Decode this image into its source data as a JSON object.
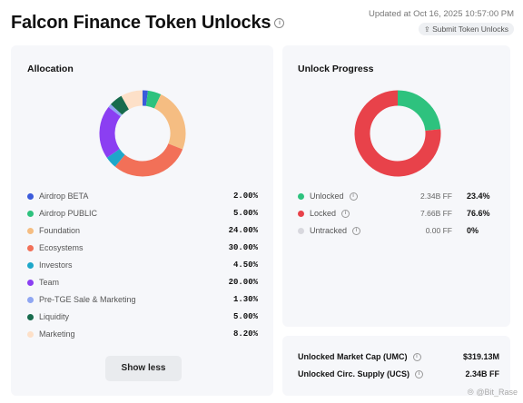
{
  "header": {
    "title": "Falcon Finance Token Unlocks",
    "updated": "Updated at Oct 16, 2025 10:57:00 PM",
    "submit_label": "Submit Token Unlocks"
  },
  "allocation": {
    "title": "Allocation",
    "items": [
      {
        "label": "Airdrop BETA",
        "pct": "2.00%",
        "value": 2.0,
        "color": "#3b5bdb"
      },
      {
        "label": "Airdrop PUBLIC",
        "pct": "5.00%",
        "value": 5.0,
        "color": "#2ec27e"
      },
      {
        "label": "Foundation",
        "pct": "24.00%",
        "value": 24.0,
        "color": "#f5bd82"
      },
      {
        "label": "Ecosystems",
        "pct": "30.00%",
        "value": 30.0,
        "color": "#f27058"
      },
      {
        "label": "Investors",
        "pct": "4.50%",
        "value": 4.5,
        "color": "#1ea7c9"
      },
      {
        "label": "Team",
        "pct": "20.00%",
        "value": 20.0,
        "color": "#8b3ff2"
      },
      {
        "label": "Pre-TGE Sale & Marketing",
        "pct": "1.30%",
        "value": 1.3,
        "color": "#8fa6f2"
      },
      {
        "label": "Liquidity",
        "pct": "5.00%",
        "value": 5.0,
        "color": "#176b4d"
      },
      {
        "label": "Marketing",
        "pct": "8.20%",
        "value": 8.2,
        "color": "#fde0c8"
      }
    ],
    "show_less_label": "Show less"
  },
  "unlock_progress": {
    "title": "Unlock Progress",
    "items": [
      {
        "label": "Unlocked",
        "value": "2.34B FF",
        "pct": "23.4%",
        "share": 23.4,
        "color": "#2ec27e"
      },
      {
        "label": "Locked",
        "value": "7.66B FF",
        "pct": "76.6%",
        "share": 76.6,
        "color": "#e8424a"
      },
      {
        "label": "Untracked",
        "value": "0.00 FF",
        "pct": "0%",
        "share": 0,
        "color": "#d8d8de"
      }
    ]
  },
  "stats": {
    "umc_label": "Unlocked Market Cap (UMC)",
    "umc_value": "$319.13M",
    "ucs_label": "Unlocked Circ. Supply (UCS)",
    "ucs_value": "2.34B FF"
  },
  "watermark": "Bit_Rase"
}
